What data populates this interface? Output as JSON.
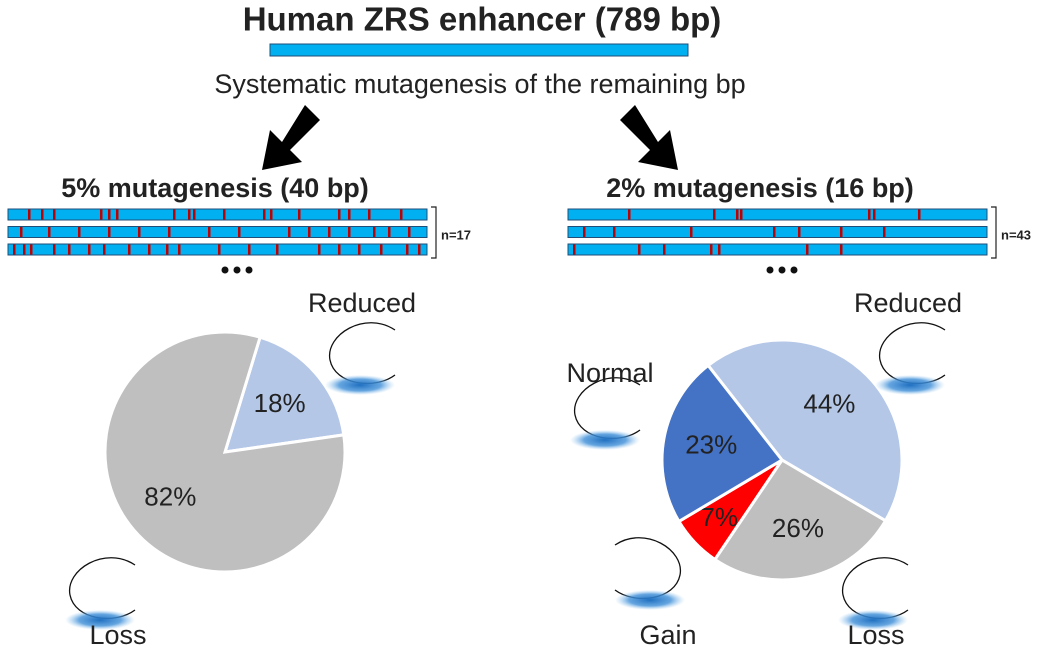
{
  "title": "Human ZRS enhancer (789 bp)",
  "subtitle": "Systematic mutagenesis of the remaining bp",
  "chart_data": [
    {
      "type": "pie",
      "title": "5% mutagenesis (40 bp)",
      "n_label": "n=17",
      "categories": [
        "Reduced",
        "Loss"
      ],
      "values": [
        18,
        82
      ],
      "value_labels": [
        "18%",
        "82%"
      ],
      "colors": [
        "#b4c7e7",
        "#bfbfbf"
      ]
    },
    {
      "type": "pie",
      "title": "2% mutagenesis (16 bp)",
      "n_label": "n=43",
      "categories": [
        "Reduced",
        "Loss",
        "Gain",
        "Normal"
      ],
      "values": [
        44,
        26,
        7,
        23
      ],
      "value_labels": [
        "44%",
        "26%",
        "7%",
        "23%"
      ],
      "colors": [
        "#b4c7e7",
        "#bfbfbf",
        "#ff0000",
        "#4472c4"
      ]
    }
  ]
}
